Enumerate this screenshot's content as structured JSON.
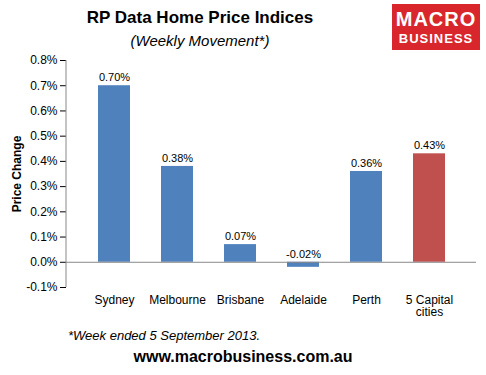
{
  "chart_data": {
    "type": "bar",
    "title": "RP Data Home Price Indices",
    "subtitle": "(Weekly Movement*)",
    "y_label": "Price Change",
    "categories": [
      "Sydney",
      "Melbourne",
      "Brisbane",
      "Adelaide",
      "Perth",
      "5 Capital\ncities"
    ],
    "values": [
      0.7,
      0.38,
      0.07,
      -0.02,
      0.36,
      0.43
    ],
    "value_labels": [
      "0.70%",
      "0.38%",
      "0.07%",
      "-0.02%",
      "0.36%",
      "0.43%"
    ],
    "colors": [
      "#4f81bd",
      "#4f81bd",
      "#4f81bd",
      "#4f81bd",
      "#4f81bd",
      "#c0504d"
    ],
    "ylim": [
      -0.1,
      0.8
    ],
    "yticks": [
      {
        "value": -0.1,
        "label": "-0.1%"
      },
      {
        "value": 0.0,
        "label": "0.0%"
      },
      {
        "value": 0.1,
        "label": "0.1%"
      },
      {
        "value": 0.2,
        "label": "0.2%"
      },
      {
        "value": 0.3,
        "label": "0.3%"
      },
      {
        "value": 0.4,
        "label": "0.4%"
      },
      {
        "value": 0.5,
        "label": "0.5%"
      },
      {
        "value": 0.6,
        "label": "0.6%"
      },
      {
        "value": 0.7,
        "label": "0.7%"
      },
      {
        "value": 0.8,
        "label": "0.8%"
      }
    ],
    "grid": false,
    "data_labels": true,
    "logo_text": [
      "MACRO",
      "BUSINESS"
    ],
    "annotations": [
      "*Week ended 5 September 2013.",
      "www.macrobusiness.com.au"
    ]
  }
}
